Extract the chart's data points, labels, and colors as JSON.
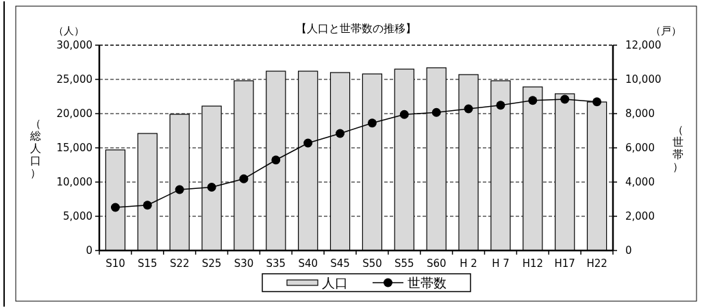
{
  "chart_data": {
    "type": "bar",
    "title": "【人口と世帯数の推移】",
    "ylabel": "（総人口）",
    "y2label": "（世帯）",
    "annotations": [
      "（人）",
      "（戸）"
    ],
    "categories": [
      "S10",
      "S15",
      "S22",
      "S25",
      "S30",
      "S35",
      "S40",
      "S45",
      "S50",
      "S55",
      "S60",
      "H 2",
      "H 7",
      "H12",
      "H17",
      "H22"
    ],
    "series": [
      {
        "name": "人口",
        "color": "#d9d9d9",
        "values": [
          14700,
          17100,
          19900,
          21100,
          24800,
          26200,
          26200,
          26000,
          25800,
          26500,
          26700,
          25700,
          24800,
          23900,
          22900,
          21700
        ]
      },
      {
        "name": "世帯数",
        "type": "line",
        "axis": "y2",
        "color": "#000000",
        "marker": "circle",
        "line_style": "solid",
        "values": [
          2520,
          2650,
          3560,
          3700,
          4190,
          5290,
          6280,
          6840,
          7450,
          7950,
          8070,
          8280,
          8490,
          8770,
          8840,
          8690
        ]
      }
    ],
    "ylim": [
      0,
      30000
    ],
    "yticks": [
      {
        "value": 0,
        "label": "0"
      },
      {
        "value": 5000,
        "label": "5,000"
      },
      {
        "value": 10000,
        "label": "10,000"
      },
      {
        "value": 15000,
        "label": "15,000"
      },
      {
        "value": 20000,
        "label": "20,000"
      },
      {
        "value": 25000,
        "label": "25,000"
      },
      {
        "value": 30000,
        "label": "30,000"
      }
    ],
    "y2lim": [
      0,
      12000
    ],
    "y2ticks": [
      {
        "value": 0,
        "label": "0"
      },
      {
        "value": 2000,
        "label": "2,000"
      },
      {
        "value": 4000,
        "label": "4,000"
      },
      {
        "value": 6000,
        "label": "6,000"
      },
      {
        "value": 8000,
        "label": "8,000"
      },
      {
        "value": 10000,
        "label": "10,000"
      },
      {
        "value": 12000,
        "label": "12,000"
      }
    ],
    "grid": "y",
    "legend": "bottom"
  }
}
